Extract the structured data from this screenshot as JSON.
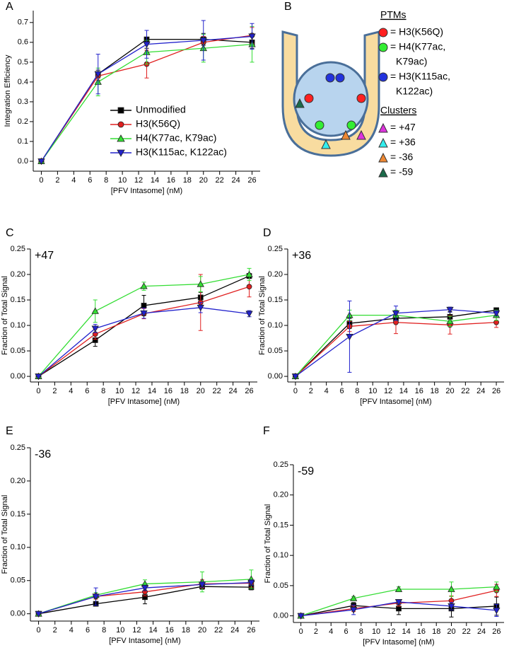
{
  "chart_data": [
    {
      "type": "line",
      "panel_label": "A",
      "xlabel": "[PFV Intasome] (nM)",
      "ylabel": "Integration Efficiency",
      "x": [
        0,
        7,
        13,
        20,
        26
      ],
      "xlim": [
        -1,
        27
      ],
      "xticks": [
        0,
        2,
        4,
        6,
        8,
        10,
        12,
        14,
        16,
        18,
        20,
        22,
        24,
        26
      ],
      "ylim": [
        -0.05,
        0.76
      ],
      "yticks": [
        {
          "value": 0,
          "label": "0.0"
        },
        {
          "value": 0.1,
          "label": "0.1"
        },
        {
          "value": 0.2,
          "label": "0.2"
        },
        {
          "value": 0.3,
          "label": "0.3"
        },
        {
          "value": 0.4,
          "label": "0.4"
        },
        {
          "value": 0.5,
          "label": "0.5"
        },
        {
          "value": 0.6,
          "label": "0.6"
        },
        {
          "value": 0.7,
          "label": "0.7"
        }
      ],
      "legend": "lower right",
      "series": [
        {
          "name": "Unmodified",
          "color": "#000000",
          "marker": "square",
          "values": [
            0,
            0.44,
            0.615,
            0.615,
            0.6
          ],
          "errors": [
            0,
            0.02,
            0.045,
            0.03,
            0.03
          ]
        },
        {
          "name": "H3(K56Q)",
          "color": "#e02020",
          "marker": "circle",
          "values": [
            0,
            0.43,
            0.49,
            0.6,
            0.635
          ],
          "errors": [
            0,
            0.02,
            0.07,
            0.03,
            0.04
          ]
        },
        {
          "name": "H4(K77ac, K79ac)",
          "color": "#33dd33",
          "marker": "triangle-up",
          "values": [
            0,
            0.4,
            0.55,
            0.57,
            0.59
          ],
          "errors": [
            0,
            0.07,
            0.06,
            0.07,
            0.09
          ]
        },
        {
          "name": "H3(K115ac, K122ac)",
          "color": "#2222cc",
          "marker": "triangle-down",
          "values": [
            0,
            0.44,
            0.59,
            0.61,
            0.63
          ],
          "errors": [
            0,
            0.1,
            0.07,
            0.1,
            0.065
          ]
        }
      ]
    },
    {
      "type": "line",
      "panel_label": "C",
      "annotation": "+47",
      "xlabel": "[PFV Intasome] (nM)",
      "ylabel": "Fraction of Total Signal",
      "x": [
        0,
        7,
        13,
        20,
        26
      ],
      "xlim": [
        -1,
        27
      ],
      "xticks": [
        0,
        2,
        4,
        6,
        8,
        10,
        12,
        14,
        16,
        18,
        20,
        22,
        24,
        26
      ],
      "ylim": [
        -0.011,
        0.25
      ],
      "yticks": [
        {
          "value": 0,
          "label": "0.00"
        },
        {
          "value": 0.05,
          "label": "0.05"
        },
        {
          "value": 0.1,
          "label": "0.10"
        },
        {
          "value": 0.15,
          "label": "0.15"
        },
        {
          "value": 0.2,
          "label": "0.20"
        },
        {
          "value": 0.25,
          "label": "0.25"
        }
      ],
      "series": [
        {
          "color": "#000000",
          "marker": "square",
          "values": [
            0,
            0.071,
            0.139,
            0.155,
            0.197
          ],
          "errors": [
            0,
            0.012,
            0.02,
            0.01,
            0.005
          ]
        },
        {
          "color": "#e02020",
          "marker": "circle",
          "values": [
            0,
            0.083,
            0.123,
            0.145,
            0.176
          ],
          "errors": [
            0,
            0.01,
            0.01,
            0.055,
            0.02
          ]
        },
        {
          "color": "#33dd33",
          "marker": "triangle-up",
          "values": [
            0,
            0.128,
            0.177,
            0.181,
            0.2
          ],
          "errors": [
            0,
            0.022,
            0.008,
            0.015,
            0.012
          ]
        },
        {
          "color": "#2222cc",
          "marker": "triangle-down",
          "values": [
            0,
            0.094,
            0.124,
            0.135,
            0.123
          ],
          "errors": [
            0,
            0.008,
            0.01,
            0.01,
            0.006
          ]
        }
      ]
    },
    {
      "type": "line",
      "panel_label": "D",
      "annotation": "+36",
      "xlabel": "[PFV Intasome] (nM)",
      "ylabel": "Fraction of Total Signal",
      "x": [
        0,
        7,
        13,
        20,
        26
      ],
      "xlim": [
        -1,
        27
      ],
      "xticks": [
        0,
        2,
        4,
        6,
        8,
        10,
        12,
        14,
        16,
        18,
        20,
        22,
        24,
        26
      ],
      "ylim": [
        -0.011,
        0.25
      ],
      "yticks": [
        {
          "value": 0,
          "label": "0.00"
        },
        {
          "value": 0.05,
          "label": "0.05"
        },
        {
          "value": 0.1,
          "label": "0.10"
        },
        {
          "value": 0.15,
          "label": "0.15"
        },
        {
          "value": 0.2,
          "label": "0.20"
        },
        {
          "value": 0.25,
          "label": "0.25"
        }
      ],
      "series": [
        {
          "color": "#000000",
          "marker": "square",
          "values": [
            0,
            0.104,
            0.114,
            0.117,
            0.13
          ],
          "errors": [
            0,
            0.01,
            0.01,
            0.01,
            0.003
          ]
        },
        {
          "color": "#e02020",
          "marker": "circle",
          "values": [
            0,
            0.098,
            0.106,
            0.101,
            0.106
          ],
          "errors": [
            0,
            0.01,
            0.022,
            0.018,
            0.01
          ]
        },
        {
          "color": "#33dd33",
          "marker": "triangle-up",
          "values": [
            0,
            0.12,
            0.12,
            0.108,
            0.12
          ],
          "errors": [
            0,
            0.01,
            0.01,
            0.01,
            0.01
          ]
        },
        {
          "color": "#2222cc",
          "marker": "triangle-down",
          "values": [
            0,
            0.078,
            0.124,
            0.131,
            0.124
          ],
          "errors": [
            0,
            0.07,
            0.014,
            0.005,
            0.005
          ]
        }
      ]
    },
    {
      "type": "line",
      "panel_label": "E",
      "annotation": "-36",
      "xlabel": "[PFV Intasome] (nM)",
      "ylabel": "Fraction of Total Signal",
      "x": [
        0,
        7,
        13,
        20,
        26
      ],
      "xlim": [
        -1,
        27
      ],
      "xticks": [
        0,
        2,
        4,
        6,
        8,
        10,
        12,
        14,
        16,
        18,
        20,
        22,
        24,
        26
      ],
      "ylim": [
        -0.011,
        0.25
      ],
      "yticks": [
        {
          "value": 0,
          "label": "0.00"
        },
        {
          "value": 0.05,
          "label": "0.05"
        },
        {
          "value": 0.1,
          "label": "0.10"
        },
        {
          "value": 0.15,
          "label": "0.15"
        },
        {
          "value": 0.2,
          "label": "0.20"
        },
        {
          "value": 0.25,
          "label": "0.25"
        }
      ],
      "series": [
        {
          "color": "#000000",
          "marker": "square",
          "values": [
            0,
            0.015,
            0.025,
            0.041,
            0.04
          ],
          "errors": [
            0,
            0.003,
            0.01,
            0.004,
            0.004
          ]
        },
        {
          "color": "#e02020",
          "marker": "circle",
          "values": [
            0,
            0.026,
            0.033,
            0.045,
            0.046
          ],
          "errors": [
            0,
            0.004,
            0.006,
            0.006,
            0.006
          ]
        },
        {
          "color": "#33dd33",
          "marker": "triangle-up",
          "values": [
            0,
            0.028,
            0.045,
            0.048,
            0.052
          ],
          "errors": [
            0,
            0.004,
            0.006,
            0.015,
            0.014
          ]
        },
        {
          "color": "#2222cc",
          "marker": "triangle-down",
          "values": [
            0,
            0.026,
            0.039,
            0.044,
            0.047
          ],
          "errors": [
            0,
            0.013,
            0.004,
            0.004,
            0.004
          ]
        }
      ]
    },
    {
      "type": "line",
      "panel_label": "F",
      "annotation": "-59",
      "xlabel": "[PFV Intasome] (nM)",
      "ylabel": "Fraction of Total Signal",
      "x": [
        0,
        7,
        13,
        20,
        26
      ],
      "xlim": [
        -1,
        27
      ],
      "xticks": [
        0,
        2,
        4,
        6,
        8,
        10,
        12,
        14,
        16,
        18,
        20,
        22,
        24,
        26
      ],
      "ylim": [
        -0.011,
        0.25
      ],
      "yticks": [
        {
          "value": 0,
          "label": "0.00"
        },
        {
          "value": 0.05,
          "label": "0.05"
        },
        {
          "value": 0.1,
          "label": "0.10"
        },
        {
          "value": 0.15,
          "label": "0.15"
        },
        {
          "value": 0.2,
          "label": "0.20"
        },
        {
          "value": 0.25,
          "label": "0.25"
        }
      ],
      "series": [
        {
          "color": "#000000",
          "marker": "square",
          "values": [
            0,
            0.017,
            0.012,
            0.012,
            0.016
          ],
          "errors": [
            0,
            0.005,
            0.01,
            0.014,
            0.015
          ]
        },
        {
          "color": "#e02020",
          "marker": "circle",
          "values": [
            0,
            0.012,
            0.021,
            0.025,
            0.042
          ],
          "errors": [
            0,
            0.005,
            0.005,
            0.008,
            0.01
          ]
        },
        {
          "color": "#33dd33",
          "marker": "triangle-up",
          "values": [
            0,
            0.029,
            0.044,
            0.044,
            0.048
          ],
          "errors": [
            0,
            0.003,
            0.004,
            0.012,
            0.008
          ]
        },
        {
          "color": "#2222cc",
          "marker": "triangle-down",
          "values": [
            0,
            0.01,
            0.023,
            0.016,
            0.009
          ],
          "errors": [
            0,
            0.008,
            0.004,
            0.006,
            0.01
          ]
        }
      ]
    }
  ],
  "diagram": {
    "panel_label": "B",
    "groups": [
      {
        "title": "PTMs",
        "shape": "circle",
        "items": [
          {
            "color": "#ff2020",
            "lines": [
              "= H3(K56Q)"
            ]
          },
          {
            "color": "#33ee33",
            "lines": [
              "= H4(K77ac,",
              "K79ac)"
            ]
          },
          {
            "color": "#2233dd",
            "lines": [
              "= H3(K115ac,",
              "K122ac)"
            ]
          }
        ]
      },
      {
        "title": "Clusters",
        "shape": "triangle",
        "items": [
          {
            "color": "#dd33dd",
            "lines": [
              "= +47"
            ]
          },
          {
            "color": "#33eeee",
            "lines": [
              "= +36"
            ]
          },
          {
            "color": "#ee8833",
            "lines": [
              "= -36"
            ]
          },
          {
            "color": "#1a6b4a",
            "lines": [
              "= -59"
            ]
          }
        ]
      }
    ]
  }
}
